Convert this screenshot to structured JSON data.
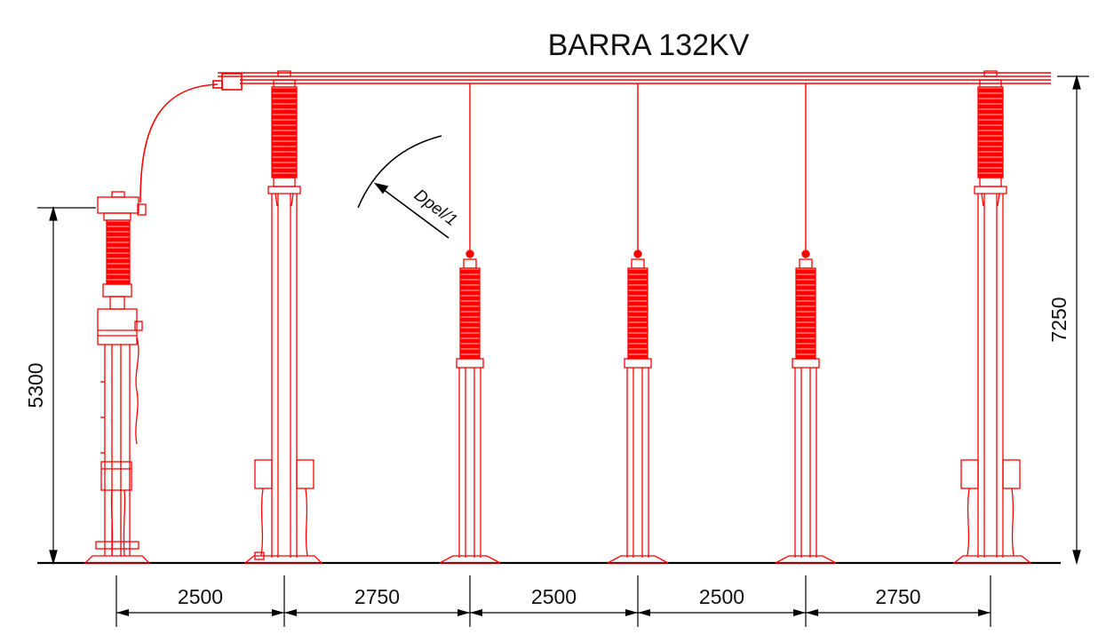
{
  "title": "BARRA 132KV",
  "colors": {
    "equipment": "#ff0000",
    "dimension": "#000000",
    "background": "#ffffff"
  },
  "clearance_label": "Dpel/1",
  "vertical_dims": {
    "left_height": "5300",
    "right_height": "7250"
  },
  "horizontal_dims": [
    "2500",
    "2750",
    "2500",
    "2500",
    "2750"
  ],
  "equipment": [
    {
      "name": "transformer-bushing"
    },
    {
      "name": "busbar-support-insulator-left"
    },
    {
      "name": "post-insulator-1"
    },
    {
      "name": "post-insulator-2"
    },
    {
      "name": "post-insulator-3"
    },
    {
      "name": "busbar-support-insulator-right"
    }
  ]
}
